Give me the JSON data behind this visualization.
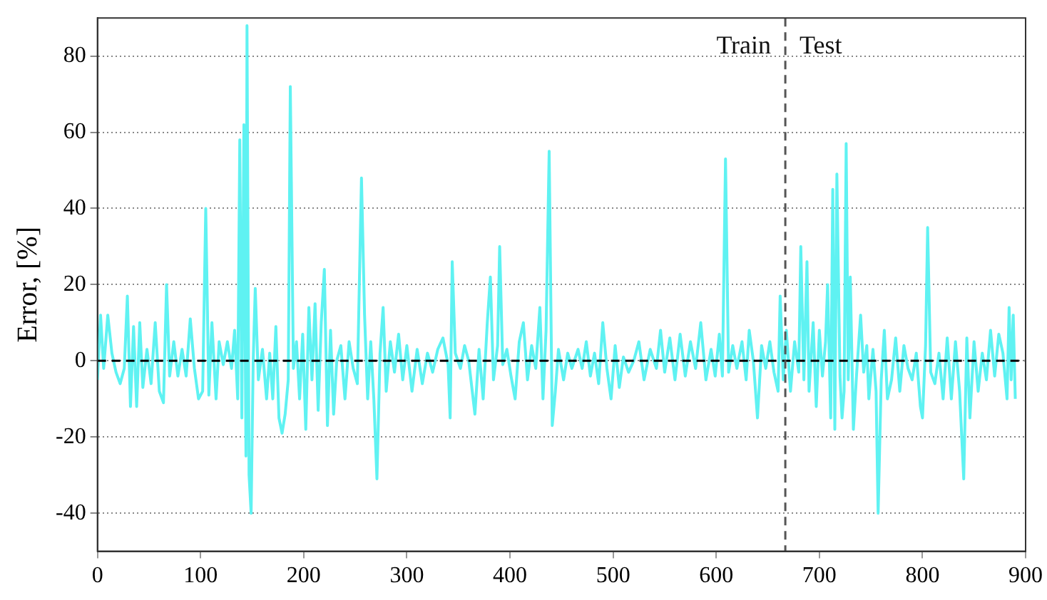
{
  "chart_data": {
    "type": "line",
    "ylabel": "Error, [%]",
    "xlim": [
      0,
      900
    ],
    "xticks": [
      0,
      100,
      200,
      300,
      400,
      500,
      600,
      700,
      800,
      900
    ],
    "ylim": [
      -50,
      90
    ],
    "yticks": [
      -40,
      -20,
      0,
      20,
      40,
      60,
      80
    ],
    "grid": "y",
    "legend": false,
    "marker": "none",
    "line_style": "solid",
    "ref_lines": [
      {
        "axis": "y",
        "value": 0,
        "color": "#000000",
        "line_style": "dashed"
      },
      {
        "axis": "x",
        "value": 667,
        "color": "#555555",
        "line_style": "dashed"
      }
    ],
    "annotations": [
      "Train",
      "Test"
    ],
    "series": [
      {
        "color": "#5ff2f2",
        "x": [
          0,
          3,
          6,
          10,
          14,
          18,
          22,
          26,
          29,
          32,
          35,
          38,
          41,
          44,
          48,
          52,
          56,
          60,
          64,
          67,
          70,
          74,
          78,
          82,
          86,
          90,
          94,
          98,
          102,
          105,
          108,
          111,
          115,
          118,
          122,
          126,
          130,
          133,
          136,
          138,
          140,
          142,
          144,
          145,
          147,
          149,
          151,
          153,
          156,
          160,
          164,
          167,
          170,
          173,
          176,
          179,
          182,
          185,
          187,
          190,
          193,
          196,
          199,
          202,
          205,
          208,
          211,
          214,
          217,
          220,
          223,
          226,
          229,
          232,
          236,
          240,
          244,
          248,
          252,
          256,
          259,
          262,
          265,
          268,
          271,
          274,
          277,
          280,
          284,
          288,
          292,
          296,
          300,
          305,
          310,
          315,
          320,
          325,
          330,
          335,
          340,
          342,
          344,
          347,
          352,
          356,
          360,
          366,
          370,
          374,
          378,
          381,
          384,
          388,
          390,
          393,
          397,
          401,
          405,
          409,
          413,
          417,
          421,
          425,
          429,
          432,
          435,
          438,
          441,
          444,
          447,
          452,
          456,
          460,
          466,
          470,
          474,
          478,
          482,
          486,
          490,
          494,
          498,
          502,
          506,
          510,
          515,
          520,
          525,
          530,
          536,
          542,
          546,
          550,
          555,
          560,
          565,
          570,
          575,
          580,
          585,
          590,
          595,
          599,
          603,
          606,
          609,
          612,
          616,
          620,
          625,
          629,
          632,
          636,
          640,
          644,
          648,
          652,
          656,
          660,
          662,
          665,
          668,
          672,
          676,
          680,
          682,
          685,
          688,
          690,
          694,
          697,
          700,
          703,
          706,
          708,
          711,
          713,
          715,
          717,
          720,
          722,
          724,
          726,
          728,
          730,
          733,
          736,
          740,
          743,
          746,
          748,
          752,
          755,
          757,
          760,
          763,
          766,
          770,
          774,
          778,
          782,
          786,
          790,
          794,
          798,
          800,
          803,
          805,
          808,
          812,
          816,
          820,
          824,
          828,
          832,
          836,
          840,
          843,
          846,
          850,
          854,
          858,
          862,
          866,
          870,
          874,
          878,
          882,
          884,
          886,
          888,
          890
        ],
        "values": [
          -5,
          12,
          -2,
          12,
          2,
          -3,
          -6,
          -2,
          17,
          -12,
          9,
          -12,
          10,
          -7,
          3,
          -6,
          10,
          -8,
          -11,
          20,
          -4,
          5,
          -4,
          3,
          -4,
          11,
          -2,
          -10,
          -8,
          40,
          -9,
          10,
          -10,
          5,
          -1,
          5,
          -2,
          8,
          -10,
          58,
          -15,
          62,
          -25,
          88,
          -30,
          -40,
          0,
          19,
          -5,
          3,
          -10,
          2,
          -10,
          9,
          -15,
          -19,
          -14,
          -5,
          72,
          -2,
          5,
          -10,
          7,
          -18,
          14,
          -5,
          15,
          -13,
          10,
          24,
          -17,
          8,
          -14,
          0,
          4,
          -10,
          5,
          -2,
          -6,
          48,
          12,
          -10,
          5,
          -10,
          -31,
          2,
          14,
          -8,
          5,
          -3,
          7,
          -5,
          4,
          -8,
          3,
          -6,
          2,
          -3,
          3,
          6,
          -1,
          -15,
          26,
          2,
          -2,
          4,
          0,
          -14,
          3,
          -10,
          10,
          22,
          -5,
          4,
          30,
          -1,
          3,
          -4,
          -10,
          5,
          10,
          -5,
          4,
          -2,
          14,
          -10,
          8,
          55,
          -17,
          -8,
          3,
          -5,
          2,
          -2,
          3,
          -2,
          5,
          -4,
          2,
          -6,
          10,
          -2,
          -10,
          4,
          -7,
          1,
          -3,
          0,
          5,
          -5,
          3,
          -2,
          8,
          -3,
          6,
          -5,
          7,
          -4,
          5,
          -2,
          10,
          -5,
          3,
          -4,
          7,
          -4,
          53,
          -3,
          4,
          -2,
          5,
          -5,
          8,
          0,
          -15,
          4,
          -2,
          5,
          -3,
          -8,
          17,
          -5,
          8,
          -8,
          5,
          -3,
          30,
          -5,
          26,
          -8,
          10,
          -12,
          8,
          -4,
          5,
          20,
          -15,
          45,
          -18,
          49,
          -4,
          -15,
          -8,
          57,
          -5,
          22,
          -18,
          -4,
          12,
          -3,
          4,
          -10,
          3,
          -8,
          -40,
          -5,
          8,
          -10,
          -5,
          6,
          -8,
          4,
          -2,
          -5,
          2,
          -12,
          -15,
          4,
          35,
          -3,
          -6,
          2,
          -10,
          6,
          -10,
          5,
          -8,
          -31,
          6,
          -15,
          5,
          -8,
          2,
          -5,
          8,
          -4,
          7,
          2,
          -10,
          14,
          -5,
          12,
          -10
        ]
      }
    ]
  }
}
